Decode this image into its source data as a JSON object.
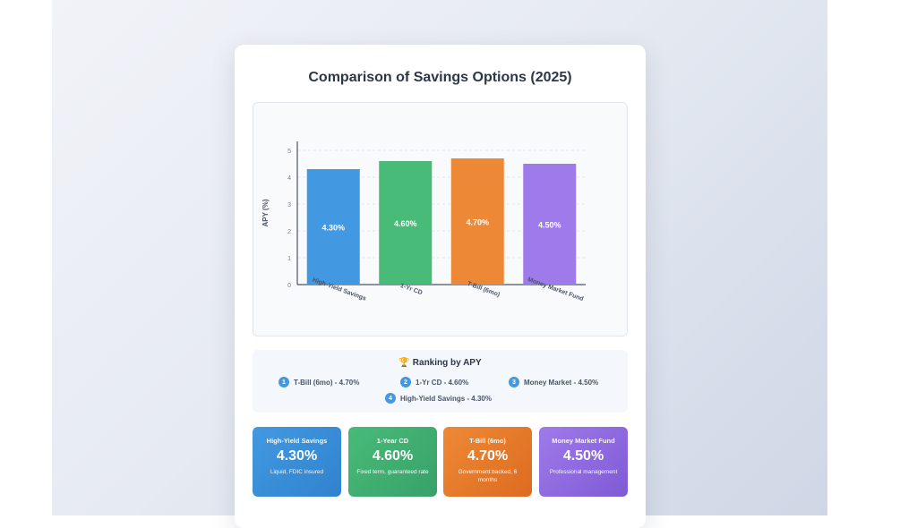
{
  "page": {
    "title": "Comparison of Savings Options (2025)"
  },
  "chart_data": {
    "type": "bar",
    "categories": [
      "High-Yield Savings",
      "1-Yr CD",
      "T-Bill (6mo)",
      "Money Market Fund"
    ],
    "values": [
      4.3,
      4.6,
      4.7,
      4.5
    ],
    "data_labels": [
      "4.30%",
      "4.60%",
      "4.70%",
      "4.50%"
    ],
    "colors": [
      "#4299e1",
      "#48bb78",
      "#ed8936",
      "#9f7aea"
    ],
    "ylabel": "APY (%)",
    "xlabel": "",
    "ylim": [
      0,
      5
    ],
    "yticks": [
      0,
      1,
      2,
      3,
      4,
      5
    ],
    "grid": true,
    "legend": "none"
  },
  "ranking": {
    "icon": "trophy-icon",
    "title": "Ranking by APY",
    "items": [
      {
        "rank": "1",
        "text": "T-Bill (6mo) - 4.70%"
      },
      {
        "rank": "2",
        "text": "1-Yr CD - 4.60%"
      },
      {
        "rank": "3",
        "text": "Money Market - 4.50%"
      },
      {
        "rank": "4",
        "text": "High-Yield Savings - 4.30%"
      }
    ]
  },
  "cards": [
    {
      "name": "High-Yield Savings",
      "value": "4.30%",
      "desc": "Liquid, FDIC insured",
      "color_from": "#4299e1",
      "color_to": "#3182ce"
    },
    {
      "name": "1-Year CD",
      "value": "4.60%",
      "desc": "Fixed term, guaranteed rate",
      "color_from": "#48bb78",
      "color_to": "#38a169"
    },
    {
      "name": "T-Bill (6mo)",
      "value": "4.70%",
      "desc": "Government backed, 6 months",
      "color_from": "#ed8936",
      "color_to": "#dd6b20"
    },
    {
      "name": "Money Market Fund",
      "value": "4.50%",
      "desc": "Professional management",
      "color_from": "#9f7aea",
      "color_to": "#805ad5"
    }
  ]
}
